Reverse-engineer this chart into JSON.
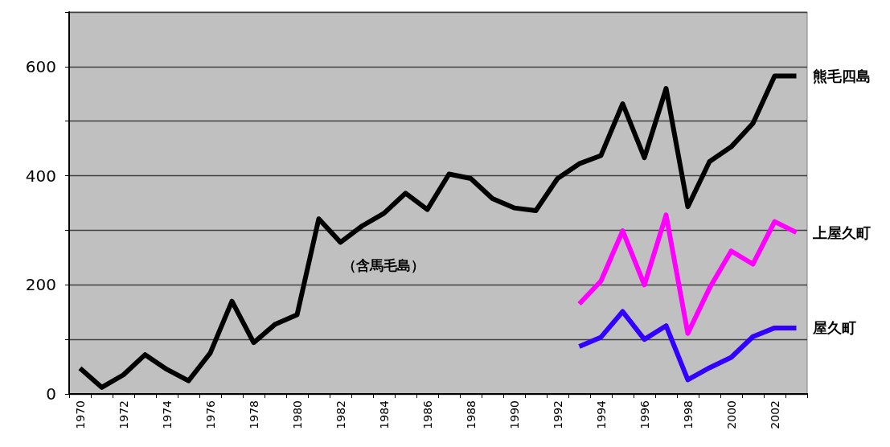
{
  "chart_data": {
    "type": "line",
    "categories": [
      "1970",
      null,
      "1972",
      null,
      "1974",
      null,
      "1976",
      null,
      "1978",
      null,
      "1980",
      null,
      "1982",
      null,
      "1984",
      null,
      "1986",
      null,
      "1988",
      null,
      "1990",
      null,
      "1992",
      null,
      "1994",
      null,
      "1996",
      null,
      "1998",
      null,
      "2000",
      null,
      "2002",
      null
    ],
    "series": [
      {
        "name": "熊毛四島",
        "color": "#000000",
        "values": [
          47,
          12,
          35,
          72,
          45,
          24,
          75,
          170,
          94,
          128,
          145,
          321,
          278,
          308,
          331,
          368,
          338,
          403,
          395,
          358,
          341,
          336,
          395,
          422,
          437,
          532,
          433,
          560,
          343,
          426,
          453,
          496,
          583,
          583
        ]
      },
      {
        "name": "上屋久町",
        "color": "#ff00ff",
        "values": [
          null,
          null,
          null,
          null,
          null,
          null,
          null,
          null,
          null,
          null,
          null,
          null,
          null,
          null,
          null,
          null,
          null,
          null,
          null,
          null,
          null,
          null,
          null,
          165,
          207,
          299,
          200,
          328,
          111,
          194,
          262,
          238,
          316,
          296
        ]
      },
      {
        "name": "屋久町",
        "color": "#3300ff",
        "values": [
          null,
          null,
          null,
          null,
          null,
          null,
          null,
          null,
          null,
          null,
          null,
          null,
          null,
          null,
          null,
          null,
          null,
          null,
          null,
          null,
          null,
          null,
          null,
          87,
          104,
          151,
          100,
          125,
          26,
          48,
          67,
          105,
          121,
          121
        ]
      }
    ],
    "ylim": [
      0,
      700
    ],
    "yticks": [
      0,
      {
        "value": 100,
        "label": null
      },
      200,
      {
        "value": 300,
        "label": null
      },
      400,
      {
        "value": 500,
        "label": null
      },
      600,
      {
        "value": 700,
        "label": null
      }
    ],
    "grid": "y",
    "marker": "none",
    "line_style": "solid",
    "annotations": [
      "（含馬毛島）"
    ]
  }
}
